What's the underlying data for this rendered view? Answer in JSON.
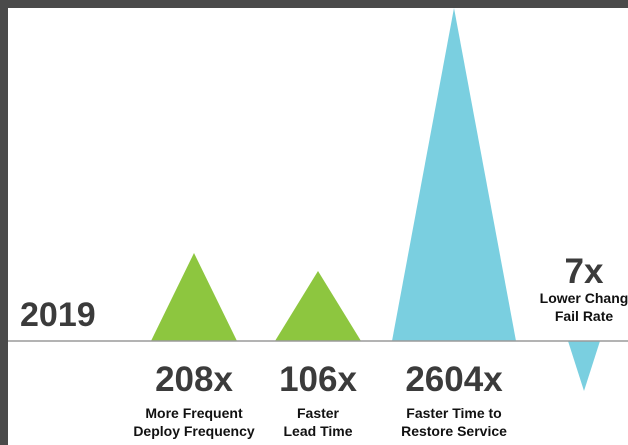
{
  "chart_data": {
    "type": "triangle-bar",
    "title": "",
    "baseline_label": "2019",
    "colors": {
      "high": "#8dc63f",
      "highest": "#7acfe0",
      "low": "#7acfe0",
      "baseline": "#9a9a9a"
    },
    "bars": [
      {
        "value_label": "208x",
        "value": 208,
        "direction": "up",
        "color_key": "high",
        "label_lines": [
          "More Frequent",
          "Deploy Frequency"
        ]
      },
      {
        "value_label": "106x",
        "value": 106,
        "direction": "up",
        "color_key": "high",
        "label_lines": [
          "Faster",
          "Lead Time"
        ]
      },
      {
        "value_label": "2604x",
        "value": 2604,
        "direction": "up",
        "color_key": "highest",
        "label_lines": [
          "Faster Time to",
          "Restore Service"
        ]
      },
      {
        "value_label": "7x",
        "value": 7,
        "direction": "down",
        "color_key": "low",
        "label_lines": [
          "Lower Chang",
          "Fail Rate"
        ]
      }
    ]
  }
}
